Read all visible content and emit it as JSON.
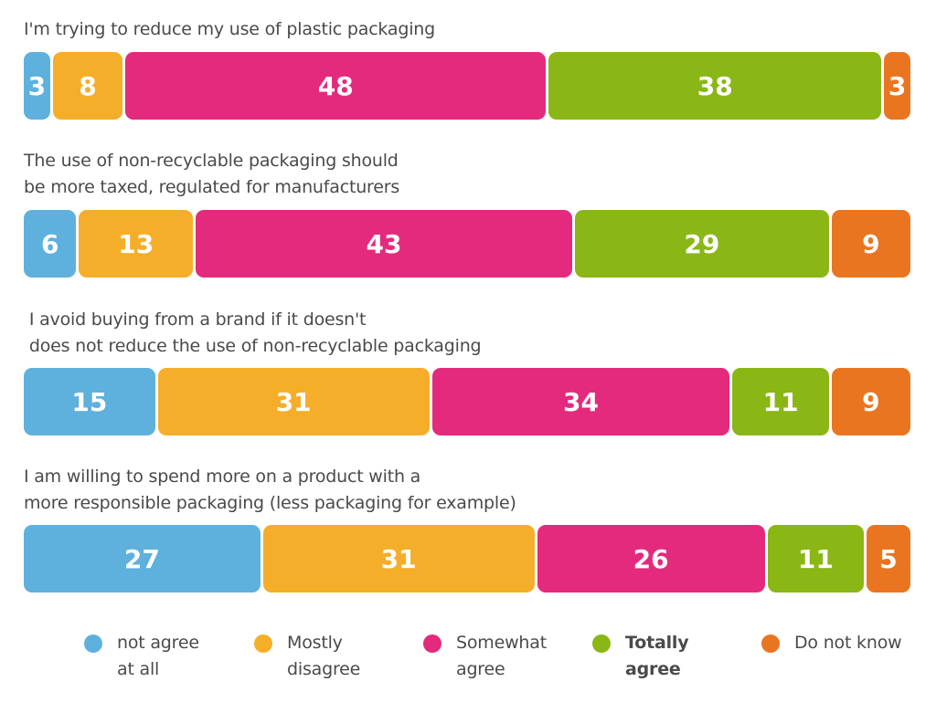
{
  "chart_data": {
    "type": "bar",
    "stacked": true,
    "orientation": "horizontal",
    "categories": [
      "I'm trying to reduce my use of plastic packaging",
      "The use of non-recyclable packaging should\nbe more taxed, regulated for manufacturers",
      " I avoid buying from a brand if it doesn't\n does not reduce the use of non-recyclable packaging",
      "I am willing to spend more on a product with a\nmore responsible packaging (less packaging for example)"
    ],
    "series": [
      {
        "name": "not agree\nat all",
        "color": "#5eb1dc",
        "values": [
          3,
          6,
          15,
          27
        ]
      },
      {
        "name": "Mostly\ndisagree",
        "color": "#f5ae2a",
        "values": [
          8,
          13,
          31,
          31
        ]
      },
      {
        "name": "Somewhat\nagree",
        "color": "#e42a7d",
        "values": [
          48,
          43,
          34,
          26
        ]
      },
      {
        "name": "Totally\nagree",
        "color": "#8ab716",
        "values": [
          38,
          29,
          11,
          11
        ],
        "bold": true
      },
      {
        "name": "Do not know",
        "color": "#ea7520",
        "values": [
          3,
          9,
          9,
          5
        ]
      }
    ],
    "data_labels": true,
    "legend_position": "bottom",
    "grid": false
  }
}
